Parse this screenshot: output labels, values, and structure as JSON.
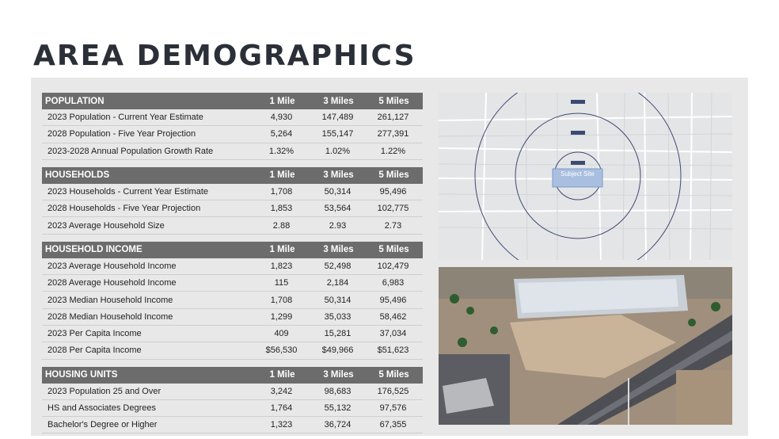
{
  "page": {
    "title": "AREA DEMOGRAPHICS"
  },
  "columns": [
    "1 Mile",
    "3 Miles",
    "5 Miles"
  ],
  "sections": [
    {
      "heading": "POPULATION",
      "rows": [
        {
          "label": "2023 Population - Current Year Estimate",
          "v": [
            "4,930",
            "147,489",
            "261,127"
          ]
        },
        {
          "label": "2028 Population -  Five Year Projection",
          "v": [
            "5,264",
            "155,147",
            "277,391"
          ]
        },
        {
          "label": "2023-2028 Annual Population Growth Rate",
          "v": [
            "1.32%",
            "1.02%",
            "1.22%"
          ]
        }
      ]
    },
    {
      "heading": "HOUSEHOLDS",
      "rows": [
        {
          "label": "2023 Households - Current Year Estimate",
          "v": [
            "1,708",
            "50,314",
            "95,496"
          ]
        },
        {
          "label": "2028 Households -  Five Year Projection",
          "v": [
            "1,853",
            "53,564",
            "102,775"
          ]
        },
        {
          "label": "2023 Average Household Size",
          "v": [
            "2.88",
            "2.93",
            "2.73"
          ]
        }
      ]
    },
    {
      "heading": "HOUSEHOLD INCOME",
      "rows": [
        {
          "label": "2023 Average Household Income",
          "v": [
            "1,823",
            "52,498",
            "102,479"
          ]
        },
        {
          "label": "2028 Average Household Income",
          "v": [
            "115",
            "2,184",
            "6,983"
          ]
        },
        {
          "label": "2023 Median Household Income",
          "v": [
            "1,708",
            "50,314",
            "95,496"
          ]
        },
        {
          "label": "2028 Median Household Income",
          "v": [
            "1,299",
            "35,033",
            "58,462"
          ]
        },
        {
          "label": "2023 Per Capita Income",
          "v": [
            "409",
            "15,281",
            "37,034"
          ]
        },
        {
          "label": "2028 Per Capita Income",
          "v": [
            "$56,530",
            "$49,966",
            "$51,623"
          ]
        }
      ]
    },
    {
      "heading": "HOUSING UNITS",
      "rows": [
        {
          "label": "2023 Population 25 and Over",
          "v": [
            "3,242",
            "98,683",
            "176,525"
          ]
        },
        {
          "label": "HS and Associates Degrees",
          "v": [
            "1,764",
            "55,132",
            "97,576"
          ]
        },
        {
          "label": "Bachelor's Degree or Higher",
          "v": [
            "1,323",
            "36,724",
            "67,355"
          ]
        }
      ]
    }
  ],
  "map": {
    "subject_label": "Subject Site"
  }
}
